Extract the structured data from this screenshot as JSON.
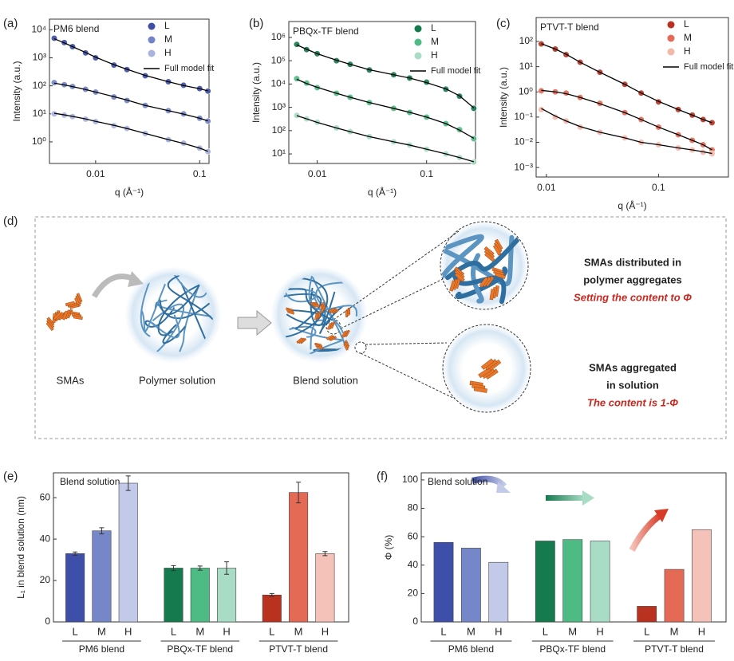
{
  "panel_labels": [
    "(a)",
    "(b)",
    "(c)",
    "(d)",
    "(e)",
    "(f)"
  ],
  "chart_data": [
    {
      "type": "scatter",
      "title": "PM6 blend",
      "xlabel": "q (Å⁻¹)",
      "ylabel": "Intensity (a.u.)",
      "xscale": "log",
      "yscale": "log",
      "legend": "upper right",
      "xlim": [
        0.0036,
        0.123
      ],
      "ylim": [
        0.17,
        24000
      ],
      "xticks": [
        0.01,
        0.1
      ],
      "yticks": [
        {
          "value": 1,
          "label": "10⁰"
        },
        {
          "value": 10,
          "label": "10¹"
        },
        {
          "value": 100,
          "label": "10²"
        },
        {
          "value": 1000,
          "label": "10³"
        },
        {
          "value": 10000,
          "label": "10⁴"
        }
      ],
      "x": [
        0.004,
        0.005,
        0.006,
        0.008,
        0.01,
        0.015,
        0.02,
        0.03,
        0.05,
        0.07,
        0.1,
        0.12
      ],
      "series": [
        {
          "name": "L",
          "color": "#3f4fa6",
          "values": [
            5000,
            3500,
            2500,
            1500,
            1000,
            550,
            380,
            230,
            140,
            105,
            80,
            65
          ]
        },
        {
          "name": "M",
          "color": "#7384c6",
          "values": [
            130,
            110,
            95,
            75,
            60,
            40,
            30,
            20,
            13,
            10,
            7,
            5.5
          ]
        },
        {
          "name": "H",
          "color": "#a9b3e0",
          "values": [
            10,
            9,
            8,
            6.5,
            5.3,
            3.8,
            3,
            2,
            1.2,
            0.9,
            0.6,
            0.45
          ]
        }
      ],
      "fit": {
        "name": "Full model fit",
        "color": "#000000",
        "curves": [
          [
            4800,
            3400,
            2500,
            1550,
            1050,
            570,
            390,
            235,
            140,
            103,
            79,
            66
          ],
          [
            125,
            108,
            94,
            74,
            60,
            41,
            31,
            20,
            13,
            9.8,
            7,
            5.6
          ],
          [
            10.5,
            9.2,
            8.1,
            6.6,
            5.4,
            3.9,
            3,
            2,
            1.2,
            0.88,
            0.6,
            0.46
          ]
        ]
      }
    },
    {
      "type": "scatter",
      "title": "PBQx-TF blend",
      "xlabel": "q (Å⁻¹)",
      "ylabel": "Intensity (a.u.)",
      "xscale": "log",
      "yscale": "log",
      "legend": "upper right",
      "xlim": [
        0.0055,
        0.28
      ],
      "ylim": [
        3.9,
        4800000
      ],
      "xticks": [
        0.01,
        0.1
      ],
      "yticks": [
        {
          "value": 10,
          "label": "10¹"
        },
        {
          "value": 100,
          "label": "10²"
        },
        {
          "value": 1000,
          "label": "10³"
        },
        {
          "value": 10000,
          "label": "10⁴"
        },
        {
          "value": 100000,
          "label": "10⁵"
        },
        {
          "value": 1000000,
          "label": "10⁶"
        }
      ],
      "x": [
        0.0065,
        0.008,
        0.01,
        0.015,
        0.02,
        0.03,
        0.05,
        0.07,
        0.1,
        0.15,
        0.2,
        0.27
      ],
      "series": [
        {
          "name": "L",
          "color": "#157a4e",
          "values": [
            500000,
            300000,
            200000,
            100000,
            70000,
            40000,
            25000,
            18000,
            12000,
            6000,
            3000,
            900
          ]
        },
        {
          "name": "M",
          "color": "#4dbb83",
          "values": [
            17000,
            11000,
            7000,
            4000,
            2700,
            1600,
            900,
            600,
            380,
            200,
            110,
            45
          ]
        },
        {
          "name": "H",
          "color": "#a8dcc4",
          "values": [
            450,
            320,
            230,
            130,
            90,
            55,
            33,
            24,
            16,
            10,
            7,
            4.5
          ]
        }
      ],
      "fit": {
        "name": "Full model fit",
        "color": "#000000",
        "curves": [
          [
            480000,
            310000,
            200000,
            105000,
            70000,
            41000,
            25000,
            18000,
            11500,
            6200,
            3100,
            950
          ],
          [
            16000,
            10500,
            7200,
            4000,
            2700,
            1600,
            900,
            610,
            380,
            200,
            105,
            47
          ],
          [
            440,
            320,
            225,
            130,
            90,
            55,
            33,
            24,
            16,
            10,
            7,
            4.6
          ]
        ]
      }
    },
    {
      "type": "scatter",
      "title": "PTVT-T blend",
      "xlabel": "q (Å⁻¹)",
      "ylabel": "Intensity (a.u.)",
      "xscale": "log",
      "yscale": "log",
      "legend": "upper right",
      "xlim": [
        0.0081,
        0.42
      ],
      "ylim": [
        0.00042,
        890
      ],
      "xticks": [
        0.01,
        0.1
      ],
      "yticks": [
        {
          "value": 0.001,
          "label": "10⁻³"
        },
        {
          "value": 0.01,
          "label": "10⁻²"
        },
        {
          "value": 0.1,
          "label": "10⁻¹"
        },
        {
          "value": 1,
          "label": "10⁰"
        },
        {
          "value": 10,
          "label": "10¹"
        },
        {
          "value": 100,
          "label": "10²"
        }
      ],
      "x": [
        0.009,
        0.012,
        0.015,
        0.02,
        0.03,
        0.05,
        0.07,
        0.1,
        0.15,
        0.2,
        0.25,
        0.3
      ],
      "series": [
        {
          "name": "L",
          "color": "#b8321f",
          "values": [
            80,
            50,
            30,
            15,
            6,
            2,
            0.9,
            0.4,
            0.2,
            0.12,
            0.08,
            0.06
          ]
        },
        {
          "name": "M",
          "color": "#e46a55",
          "values": [
            1.1,
            1,
            0.9,
            0.6,
            0.35,
            0.15,
            0.08,
            0.04,
            0.02,
            0.012,
            0.008,
            0.005
          ]
        },
        {
          "name": "H",
          "color": "#f4b8aa",
          "values": [
            0.2,
            0.1,
            0.07,
            0.04,
            0.025,
            0.015,
            0.01,
            0.008,
            0.006,
            0.005,
            0.004,
            0.0035
          ]
        }
      ],
      "fit": {
        "name": "Full model fit",
        "color": "#000000",
        "curves": [
          [
            82,
            50,
            31,
            15,
            6,
            2,
            0.9,
            0.42,
            0.2,
            0.12,
            0.08,
            0.06
          ],
          [
            1.15,
            1,
            0.85,
            0.6,
            0.34,
            0.15,
            0.08,
            0.04,
            0.02,
            0.012,
            0.008,
            0.005
          ],
          [
            0.22,
            0.11,
            0.07,
            0.042,
            0.025,
            0.015,
            0.01,
            0.008,
            0.006,
            0.005,
            0.0042,
            0.0036
          ]
        ]
      }
    },
    {
      "type": "bar",
      "annotation": "Blend solution",
      "ylabel": "L₁ in blend solution (nm)",
      "ylim": [
        0,
        72
      ],
      "yticks": [
        0,
        20,
        40,
        60
      ],
      "groups": [
        {
          "name": "PM6 blend",
          "categories": [
            "L",
            "M",
            "H"
          ],
          "values": [
            33,
            44,
            67
          ],
          "errors": [
            0.8,
            1.5,
            3.5
          ],
          "colors": [
            "#3d4fa8",
            "#7687c9",
            "#c3c9e8"
          ]
        },
        {
          "name": "PBQx-TF blend",
          "categories": [
            "L",
            "M",
            "H"
          ],
          "values": [
            26,
            26,
            26
          ],
          "errors": [
            1.2,
            1,
            3
          ],
          "colors": [
            "#157a4e",
            "#4dbb83",
            "#a8dcc4"
          ]
        },
        {
          "name": "PTVT-T blend",
          "categories": [
            "L",
            "M",
            "H"
          ],
          "values": [
            13,
            62.5,
            33
          ],
          "errors": [
            0.7,
            5,
            1
          ],
          "colors": [
            "#b8321f",
            "#e46a55",
            "#f4c2b8"
          ]
        }
      ]
    },
    {
      "type": "bar",
      "annotation": "Blend solution",
      "ylabel": "Φ (%)",
      "ylim": [
        0,
        105
      ],
      "yticks": [
        0,
        20,
        40,
        60,
        80,
        100
      ],
      "groups": [
        {
          "name": "PM6 blend",
          "categories": [
            "L",
            "M",
            "H"
          ],
          "values": [
            56,
            52,
            42
          ],
          "colors": [
            "#3d4fa8",
            "#7687c9",
            "#c3c9e8"
          ]
        },
        {
          "name": "PBQx-TF blend",
          "categories": [
            "L",
            "M",
            "H"
          ],
          "values": [
            57,
            58,
            57
          ],
          "colors": [
            "#157a4e",
            "#4dbb83",
            "#a8dcc4"
          ]
        },
        {
          "name": "PTVT-T blend",
          "categories": [
            "L",
            "M",
            "H"
          ],
          "values": [
            11,
            37,
            65
          ],
          "colors": [
            "#b8321f",
            "#e46a55",
            "#f4c2b8"
          ]
        }
      ]
    }
  ],
  "diagram": {
    "smas": "SMAs",
    "polymer": "Polymer solution",
    "blend": "Blend solution",
    "distributed": [
      "SMAs distributed in",
      "polymer aggregates"
    ],
    "distributed_note": "Setting the content to Φ",
    "aggregated": [
      "SMAs aggregated",
      "in solution"
    ],
    "aggregated_note": "The content is 1-Φ"
  }
}
